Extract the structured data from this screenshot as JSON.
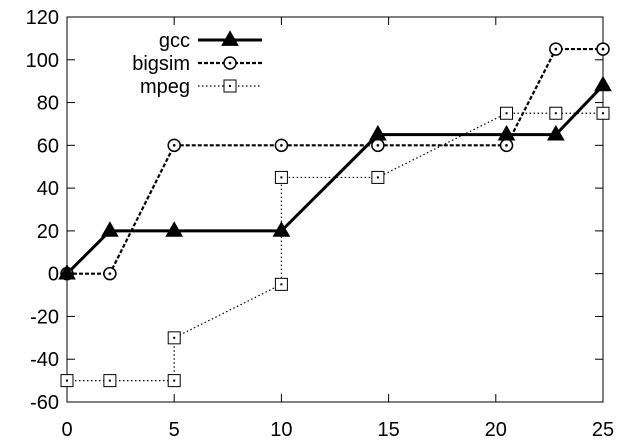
{
  "chart_data": {
    "type": "line",
    "title": "",
    "xlabel": "",
    "ylabel": "",
    "xlim": [
      0,
      25
    ],
    "ylim": [
      -60,
      120
    ],
    "x_ticks": [
      0,
      5,
      10,
      15,
      20,
      25
    ],
    "y_ticks": [
      -60,
      -40,
      -20,
      0,
      20,
      40,
      60,
      80,
      100,
      120
    ],
    "grid": false,
    "legend_position": "top-left",
    "series": [
      {
        "name": "gcc",
        "line_style": "solid",
        "marker": "triangle",
        "color": "#000000",
        "points": [
          {
            "x": 0,
            "y": 0
          },
          {
            "x": 2,
            "y": 20
          },
          {
            "x": 5,
            "y": 20
          },
          {
            "x": 10,
            "y": 20
          },
          {
            "x": 14.5,
            "y": 65
          },
          {
            "x": 20.5,
            "y": 65
          },
          {
            "x": 22.8,
            "y": 65
          },
          {
            "x": 25,
            "y": 88
          }
        ]
      },
      {
        "name": "bigsim",
        "line_style": "dashed",
        "marker": "circle",
        "color": "#000000",
        "points": [
          {
            "x": 0,
            "y": 0
          },
          {
            "x": 2,
            "y": 0
          },
          {
            "x": 5,
            "y": 60
          },
          {
            "x": 10,
            "y": 60
          },
          {
            "x": 14.5,
            "y": 60
          },
          {
            "x": 20.5,
            "y": 60
          },
          {
            "x": 22.8,
            "y": 105
          },
          {
            "x": 25,
            "y": 105
          }
        ]
      },
      {
        "name": "mpeg",
        "line_style": "dotted",
        "marker": "square",
        "color": "#000000",
        "points": [
          {
            "x": 0,
            "y": -50
          },
          {
            "x": 2,
            "y": -50
          },
          {
            "x": 5,
            "y": -50
          },
          {
            "x": 5,
            "y": -30
          },
          {
            "x": 10,
            "y": -5
          },
          {
            "x": 10,
            "y": 45
          },
          {
            "x": 14.5,
            "y": 45
          },
          {
            "x": 20.5,
            "y": 75
          },
          {
            "x": 22.8,
            "y": 75
          },
          {
            "x": 25,
            "y": 75
          }
        ]
      }
    ]
  }
}
